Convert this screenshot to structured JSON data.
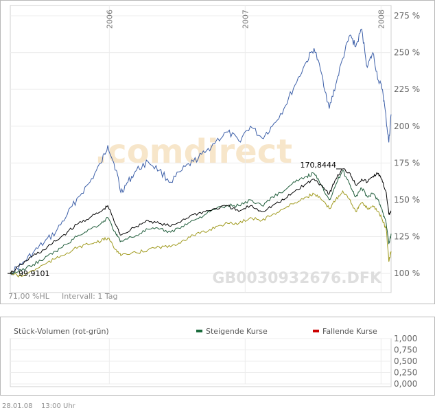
{
  "chart_data": [
    {
      "type": "line",
      "xlim": [
        "2005-04-10",
        "2008-01-28"
      ],
      "ylim": [
        87,
        282
      ],
      "y_ticks": [
        100,
        125,
        150,
        175,
        200,
        225,
        250,
        275
      ],
      "y_tick_labels": [
        "100 %",
        "125 %",
        "150 %",
        "175 %",
        "200 %",
        "225 %",
        "250 %",
        "275 %"
      ],
      "x_year_labels": [
        {
          "date": "2006-01-01",
          "label": "2006"
        },
        {
          "date": "2007-01-01",
          "label": "2007"
        },
        {
          "date": "2008-01-01",
          "label": "2008"
        }
      ],
      "grid": true,
      "watermark": ".comdirect",
      "symbol_label": "GB0030932676.DFK",
      "footer_left": "71,00 %HL",
      "footer_interval": "Intervall: 1 Tag",
      "annotations": [
        {
          "text": "99,9101",
          "date": "2005-04-10",
          "y": 100
        },
        {
          "text": "170,8444",
          "date": "2007-09-10",
          "y": 171
        }
      ],
      "series": [
        {
          "color": "#3c5fa8",
          "points": [
            [
              "2005-04-10",
              100
            ],
            [
              "2005-05-10",
              106
            ],
            [
              "2005-06-10",
              114
            ],
            [
              "2005-07-10",
              121
            ],
            [
              "2005-08-10",
              128
            ],
            [
              "2005-09-10",
              140
            ],
            [
              "2005-10-10",
              152
            ],
            [
              "2005-11-10",
              162
            ],
            [
              "2005-12-10",
              175
            ],
            [
              "2005-12-28",
              187
            ],
            [
              "2006-01-20",
              170
            ],
            [
              "2006-02-01",
              155
            ],
            [
              "2006-02-20",
              162
            ],
            [
              "2006-03-15",
              170
            ],
            [
              "2006-04-15",
              176
            ],
            [
              "2006-05-15",
              170
            ],
            [
              "2006-06-15",
              162
            ],
            [
              "2006-07-15",
              170
            ],
            [
              "2006-08-15",
              176
            ],
            [
              "2006-09-15",
              182
            ],
            [
              "2006-10-15",
              190
            ],
            [
              "2006-11-15",
              196
            ],
            [
              "2006-12-15",
              190
            ],
            [
              "2007-01-15",
              200
            ],
            [
              "2007-02-15",
              192
            ],
            [
              "2007-03-15",
              200
            ],
            [
              "2007-04-15",
              212
            ],
            [
              "2007-05-15",
              228
            ],
            [
              "2007-06-15",
              244
            ],
            [
              "2007-07-05",
              253
            ],
            [
              "2007-07-25",
              236
            ],
            [
              "2007-08-15",
              212
            ],
            [
              "2007-09-01",
              228
            ],
            [
              "2007-09-20",
              246
            ],
            [
              "2007-10-10",
              262
            ],
            [
              "2007-10-25",
              254
            ],
            [
              "2007-11-10",
              266
            ],
            [
              "2007-11-25",
              240
            ],
            [
              "2007-12-10",
              250
            ],
            [
              "2007-12-25",
              231
            ],
            [
              "2008-01-05",
              225
            ],
            [
              "2008-01-15",
              204
            ],
            [
              "2008-01-22",
              189
            ],
            [
              "2008-01-28",
              208
            ]
          ]
        },
        {
          "color": "#000000",
          "points": [
            [
              "2005-04-10",
              100
            ],
            [
              "2005-05-10",
              106
            ],
            [
              "2005-06-10",
              112
            ],
            [
              "2005-07-10",
              116
            ],
            [
              "2005-08-10",
              122
            ],
            [
              "2005-09-10",
              128
            ],
            [
              "2005-10-10",
              134
            ],
            [
              "2005-11-10",
              138
            ],
            [
              "2005-12-10",
              142
            ],
            [
              "2005-12-28",
              146
            ],
            [
              "2006-01-20",
              132
            ],
            [
              "2006-02-01",
              126
            ],
            [
              "2006-03-15",
              132
            ],
            [
              "2006-04-15",
              136
            ],
            [
              "2006-05-15",
              134
            ],
            [
              "2006-06-15",
              132
            ],
            [
              "2006-07-15",
              136
            ],
            [
              "2006-08-15",
              140
            ],
            [
              "2006-09-15",
              142
            ],
            [
              "2006-10-15",
              144
            ],
            [
              "2006-11-15",
              146
            ],
            [
              "2006-12-15",
              142
            ],
            [
              "2007-01-15",
              146
            ],
            [
              "2007-02-15",
              142
            ],
            [
              "2007-03-15",
              146
            ],
            [
              "2007-04-15",
              150
            ],
            [
              "2007-05-15",
              156
            ],
            [
              "2007-06-15",
              161
            ],
            [
              "2007-07-05",
              164
            ],
            [
              "2007-07-25",
              160
            ],
            [
              "2007-08-15",
              154
            ],
            [
              "2007-09-01",
              164
            ],
            [
              "2007-09-20",
              171
            ],
            [
              "2007-10-10",
              168
            ],
            [
              "2007-10-25",
              160
            ],
            [
              "2007-11-10",
              164
            ],
            [
              "2007-11-25",
              162
            ],
            [
              "2007-12-10",
              166
            ],
            [
              "2007-12-25",
              168
            ],
            [
              "2008-01-05",
              162
            ],
            [
              "2008-01-15",
              155
            ],
            [
              "2008-01-22",
              140
            ],
            [
              "2008-01-28",
              142
            ]
          ]
        },
        {
          "color": "#1f5c3a",
          "points": [
            [
              "2005-04-10",
              100
            ],
            [
              "2005-05-10",
              102
            ],
            [
              "2005-06-10",
              106
            ],
            [
              "2005-07-10",
              110
            ],
            [
              "2005-08-10",
              115
            ],
            [
              "2005-09-10",
              120
            ],
            [
              "2005-10-10",
              126
            ],
            [
              "2005-11-10",
              130
            ],
            [
              "2005-12-10",
              134
            ],
            [
              "2005-12-28",
              138
            ],
            [
              "2006-01-20",
              126
            ],
            [
              "2006-02-01",
              122
            ],
            [
              "2006-03-15",
              126
            ],
            [
              "2006-04-15",
              130
            ],
            [
              "2006-05-15",
              130
            ],
            [
              "2006-06-15",
              128
            ],
            [
              "2006-07-15",
              132
            ],
            [
              "2006-08-15",
              136
            ],
            [
              "2006-09-15",
              140
            ],
            [
              "2006-10-15",
              144
            ],
            [
              "2006-11-15",
              146
            ],
            [
              "2006-12-15",
              146
            ],
            [
              "2007-01-15",
              150
            ],
            [
              "2007-02-15",
              146
            ],
            [
              "2007-03-15",
              152
            ],
            [
              "2007-04-15",
              156
            ],
            [
              "2007-05-15",
              162
            ],
            [
              "2007-06-15",
              166
            ],
            [
              "2007-07-05",
              168
            ],
            [
              "2007-07-25",
              160
            ],
            [
              "2007-08-15",
              150
            ],
            [
              "2007-09-01",
              160
            ],
            [
              "2007-09-20",
              170
            ],
            [
              "2007-10-10",
              160
            ],
            [
              "2007-10-25",
              152
            ],
            [
              "2007-11-10",
              158
            ],
            [
              "2007-11-25",
              152
            ],
            [
              "2007-12-10",
              154
            ],
            [
              "2007-12-25",
              150
            ],
            [
              "2008-01-05",
              142
            ],
            [
              "2008-01-15",
              134
            ],
            [
              "2008-01-22",
              120
            ],
            [
              "2008-01-28",
              127
            ]
          ]
        },
        {
          "color": "#a09a1e",
          "points": [
            [
              "2005-04-10",
              100
            ],
            [
              "2005-05-10",
              98
            ],
            [
              "2005-06-10",
              102
            ],
            [
              "2005-07-10",
              106
            ],
            [
              "2005-08-10",
              110
            ],
            [
              "2005-09-10",
              114
            ],
            [
              "2005-10-10",
              118
            ],
            [
              "2005-11-10",
              120
            ],
            [
              "2005-12-10",
              122
            ],
            [
              "2005-12-28",
              124
            ],
            [
              "2006-01-20",
              116
            ],
            [
              "2006-02-01",
              112
            ],
            [
              "2006-03-15",
              114
            ],
            [
              "2006-04-15",
              116
            ],
            [
              "2006-05-15",
              118
            ],
            [
              "2006-06-15",
              118
            ],
            [
              "2006-07-15",
              122
            ],
            [
              "2006-08-15",
              126
            ],
            [
              "2006-09-15",
              128
            ],
            [
              "2006-10-15",
              132
            ],
            [
              "2006-11-15",
              134
            ],
            [
              "2006-12-15",
              134
            ],
            [
              "2007-01-15",
              138
            ],
            [
              "2007-02-15",
              136
            ],
            [
              "2007-03-15",
              140
            ],
            [
              "2007-04-15",
              144
            ],
            [
              "2007-05-15",
              148
            ],
            [
              "2007-06-15",
              152
            ],
            [
              "2007-07-05",
              154
            ],
            [
              "2007-07-25",
              150
            ],
            [
              "2007-08-15",
              144
            ],
            [
              "2007-09-01",
              150
            ],
            [
              "2007-09-20",
              156
            ],
            [
              "2007-10-10",
              150
            ],
            [
              "2007-10-25",
              142
            ],
            [
              "2007-11-10",
              148
            ],
            [
              "2007-11-25",
              144
            ],
            [
              "2007-12-10",
              146
            ],
            [
              "2007-12-25",
              142
            ],
            [
              "2008-01-05",
              136
            ],
            [
              "2008-01-15",
              130
            ],
            [
              "2008-01-22",
              108
            ],
            [
              "2008-01-28",
              115
            ]
          ]
        }
      ]
    },
    {
      "type": "bar",
      "title": "Stück-Volumen (rot-grün)",
      "ylim": [
        0,
        1
      ],
      "y_ticks": [
        0,
        0.25,
        0.5,
        0.75,
        1
      ],
      "y_tick_labels": [
        "0,000",
        "0,250",
        "0,500",
        "0,750",
        "1,000"
      ],
      "grid": true,
      "legend": [
        {
          "label": "Steigende Kurse",
          "color": "#1a6b3c"
        },
        {
          "label": "Fallende Kurse",
          "color": "#cc0000"
        }
      ],
      "values": []
    }
  ],
  "footer": {
    "date": "28.01.08",
    "time": "13:00 Uhr"
  }
}
